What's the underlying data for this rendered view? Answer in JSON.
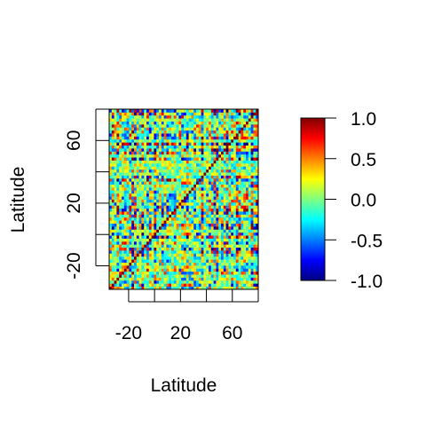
{
  "chart_data": {
    "type": "heatmap",
    "title": "",
    "xlabel": "Latitude",
    "ylabel": "Latitude",
    "x_range": [
      -35,
      80
    ],
    "y_range": [
      -35,
      80
    ],
    "x_ticks": [
      -40,
      -20,
      0,
      20,
      40,
      60,
      80
    ],
    "x_tick_labels": [
      "-20",
      "20",
      "60"
    ],
    "x_tick_label_values": [
      -20,
      20,
      60
    ],
    "y_ticks": [
      -40,
      -20,
      0,
      20,
      40,
      60,
      80
    ],
    "y_tick_labels": [
      "-20",
      "20",
      "60"
    ],
    "y_tick_label_values": [
      -20,
      20,
      60
    ],
    "value_range": [
      -1.0,
      1.0
    ],
    "colorscale": "jet",
    "colorbar": {
      "ticks": [
        1.0,
        0.5,
        0.0,
        -0.5,
        -1.0
      ],
      "tick_labels": [
        "1.0",
        "0.5",
        "0.0",
        "-0.5",
        "-1.0"
      ],
      "colors": [
        "#00007F",
        "#0000FF",
        "#007FFF",
        "#00FFFF",
        "#7FFF7F",
        "#FFFF00",
        "#FF7F00",
        "#FF0000",
        "#7F0000"
      ]
    },
    "legend": "right",
    "grid": false,
    "matrix_size": [
      60,
      60
    ]
  }
}
